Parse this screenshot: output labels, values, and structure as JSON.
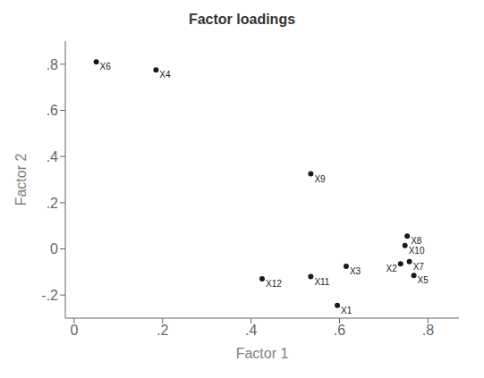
{
  "chart_data": {
    "type": "scatter",
    "title": "Factor loadings",
    "xlabel": "Factor 1",
    "ylabel": "Factor 2",
    "xlim": [
      -0.02,
      0.87
    ],
    "ylim": [
      -0.3,
      0.9
    ],
    "xticks": [
      0,
      {
        "value": 0.2,
        "label": ".2"
      },
      {
        "value": 0.4,
        "label": ".4"
      },
      {
        "value": 0.6,
        "label": ".6"
      },
      {
        "value": 0.8,
        "label": ".8"
      }
    ],
    "yticks": [
      {
        "value": -0.2,
        "label": "-.2"
      },
      0,
      {
        "value": 0.2,
        "label": ".2"
      },
      {
        "value": 0.4,
        "label": ".4"
      },
      {
        "value": 0.6,
        "label": ".6"
      },
      {
        "value": 0.8,
        "label": ".8"
      }
    ],
    "labels": [
      "X6",
      "X4",
      "X9",
      "X12",
      "X11",
      "X1",
      "X3",
      "X8",
      "X10",
      "X7",
      "X2",
      "X5"
    ],
    "x": [
      0.05,
      0.185,
      0.535,
      0.425,
      0.535,
      0.595,
      0.615,
      0.753,
      0.748,
      0.758,
      0.738,
      0.768
    ],
    "values": [
      0.81,
      0.775,
      0.325,
      -0.13,
      -0.12,
      -0.245,
      -0.075,
      0.055,
      0.015,
      -0.055,
      -0.065,
      -0.115
    ],
    "color": "#1a1a1a",
    "grid": false
  }
}
